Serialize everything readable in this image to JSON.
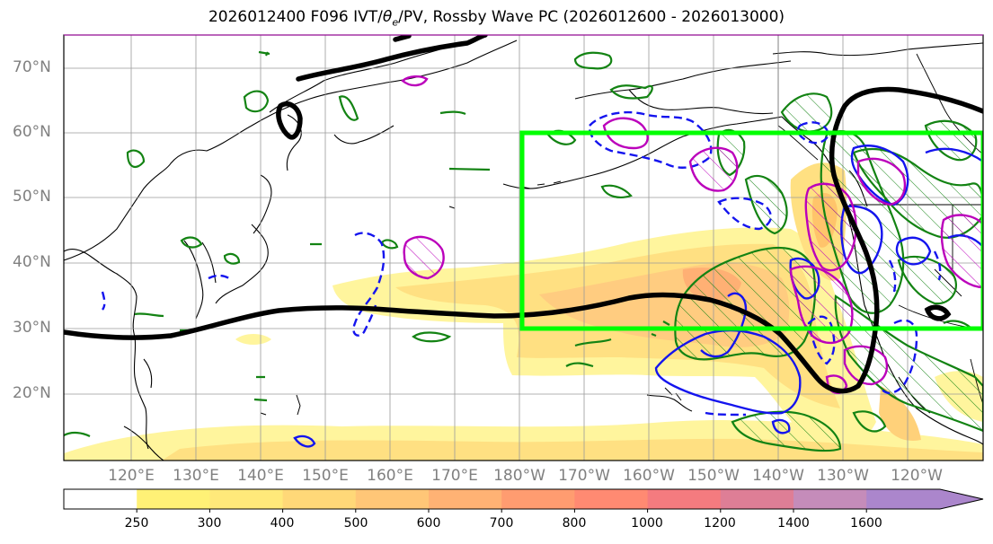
{
  "title": {
    "prefix": "2026012400 F096 IVT/",
    "theta": "θ",
    "theta_sub": "e",
    "suffix": "/PV, Rossby Wave PC (2026012600 - 2026013000)"
  },
  "lat_labels": [
    "70°N",
    "60°N",
    "50°N",
    "40°N",
    "30°N",
    "20°N"
  ],
  "lon_labels": [
    "120°E",
    "130°E",
    "140°E",
    "150°E",
    "160°E",
    "170°E",
    "180°W",
    "170°W",
    "160°W",
    "150°W",
    "140°W",
    "130°W",
    "120°W"
  ],
  "colorbar": {
    "ticks": [
      "250",
      "300",
      "400",
      "500",
      "600",
      "700",
      "800",
      "1000",
      "1200",
      "1400",
      "1600"
    ],
    "colors": [
      "#ffffff",
      "#fff176",
      "#ffe97a",
      "#ffd878",
      "#ffc677",
      "#ffb274",
      "#ff9c70",
      "#ff8a72",
      "#f47b7f",
      "#de7e96",
      "#c58cba",
      "#ab86cc"
    ]
  },
  "colors": {
    "ivt_fill": "#ffd863",
    "ivt_core": "#ffa65c",
    "pv_green": "#138313",
    "theta_blue": "#1414ee",
    "magenta": "#bb00bb",
    "box": "#00ff00",
    "jet": "#000000"
  }
}
